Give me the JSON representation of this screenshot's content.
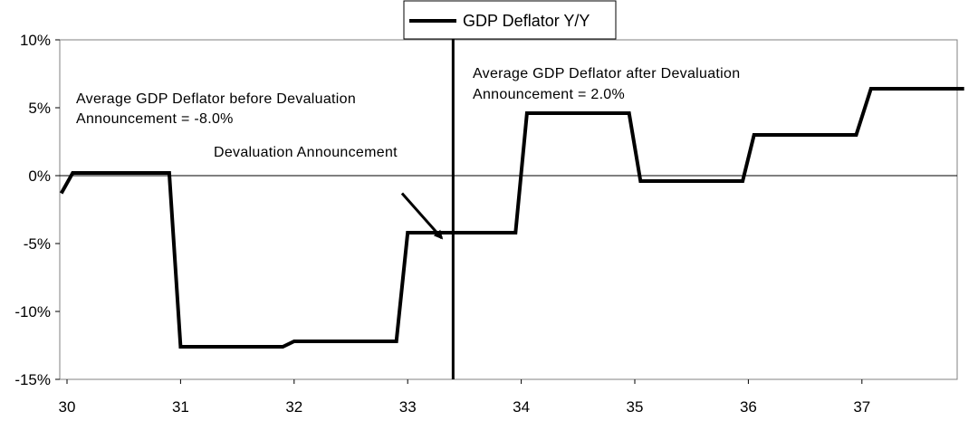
{
  "chart_data": {
    "type": "line",
    "series": [
      {
        "name": "GDP Deflator Y/Y",
        "points": [
          [
            29.95,
            -1.3
          ],
          [
            30.05,
            0.2
          ],
          [
            30.9,
            0.2
          ],
          [
            31.0,
            -12.6
          ],
          [
            31.9,
            -12.6
          ],
          [
            32.0,
            -12.2
          ],
          [
            32.9,
            -12.2
          ],
          [
            33.0,
            -4.2
          ],
          [
            33.3,
            -4.2
          ],
          [
            33.95,
            -4.2
          ],
          [
            34.05,
            4.6
          ],
          [
            34.95,
            4.6
          ],
          [
            35.05,
            -0.4
          ],
          [
            35.95,
            -0.4
          ],
          [
            36.05,
            3.0
          ],
          [
            36.95,
            3.0
          ],
          [
            37.08,
            6.4
          ],
          [
            37.9,
            6.4
          ]
        ]
      }
    ],
    "xlim": [
      30,
      37.9
    ],
    "ylim": [
      -15,
      10
    ],
    "xticks": [
      "30",
      "31",
      "32",
      "33",
      "34",
      "35",
      "36",
      "37"
    ],
    "yticks": [
      "10%",
      "5%",
      "0%",
      "-5%",
      "-10%",
      "-15%"
    ],
    "vline_x": 33.4,
    "arrow": {
      "from": [
        32.95,
        -1.3
      ],
      "to": [
        33.3,
        -4.6
      ]
    },
    "legend_position": "top-center",
    "grid": false,
    "line_color": "#000000",
    "annotations": {
      "before_line1": "Average GDP Deflator before Devaluation",
      "before_line2": "Announcement = -8.0%",
      "devaluation": "Devaluation Announcement",
      "after_line1": "Average GDP Deflator after Devaluation",
      "after_line2": "Announcement = 2.0%"
    }
  }
}
